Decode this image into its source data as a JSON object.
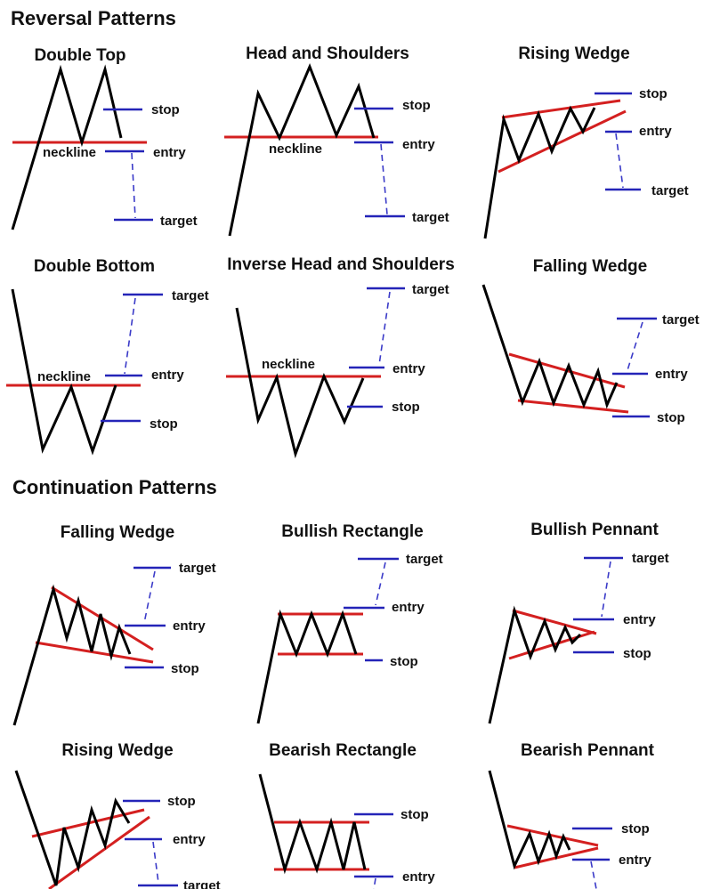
{
  "sections": {
    "reversal": "Reversal Patterns",
    "continuation": "Continuation Patterns"
  },
  "colors": {
    "price_line": "#000000",
    "trend_lines": "#d42020",
    "levels": "#2424b8"
  },
  "panels": [
    {
      "title": "Double Top",
      "labels": {
        "neckline": "neckline",
        "stop": "stop",
        "entry": "entry",
        "target": "target"
      }
    },
    {
      "title": "Head and Shoulders",
      "labels": {
        "neckline": "neckline",
        "stop": "stop",
        "entry": "entry",
        "target": "target"
      }
    },
    {
      "title": "Rising Wedge",
      "labels": {
        "stop": "stop",
        "entry": "entry",
        "target": "target"
      }
    },
    {
      "title": "Double Bottom",
      "labels": {
        "neckline": "neckline",
        "target": "target",
        "entry": "entry",
        "stop": "stop"
      }
    },
    {
      "title": "Inverse Head and Shoulders",
      "labels": {
        "neckline": "neckline",
        "target": "target",
        "entry": "entry",
        "stop": "stop"
      }
    },
    {
      "title": "Falling Wedge",
      "labels": {
        "target": "target",
        "entry": "entry",
        "stop": "stop"
      }
    },
    {
      "title": "Falling Wedge",
      "labels": {
        "target": "target",
        "entry": "entry",
        "stop": "stop"
      }
    },
    {
      "title": "Bullish Rectangle",
      "labels": {
        "target": "target",
        "entry": "entry",
        "stop": "stop"
      }
    },
    {
      "title": "Bullish Pennant",
      "labels": {
        "target": "target",
        "entry": "entry",
        "stop": "stop"
      }
    },
    {
      "title": "Rising Wedge",
      "labels": {
        "stop": "stop",
        "entry": "entry",
        "target": "target"
      }
    },
    {
      "title": "Bearish Rectangle",
      "labels": {
        "stop": "stop",
        "entry": "entry"
      }
    },
    {
      "title": "Bearish Pennant",
      "labels": {
        "stop": "stop",
        "entry": "entry"
      }
    }
  ]
}
